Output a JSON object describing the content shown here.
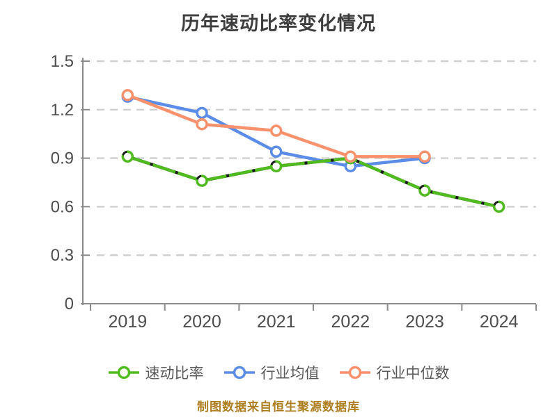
{
  "chart_data": {
    "type": "line",
    "title": "历年速动比率变化情况",
    "categories": [
      "2019",
      "2020",
      "2021",
      "2022",
      "2023",
      "2024"
    ],
    "series": [
      {
        "name": "速动比率",
        "key": "quick-ratio",
        "color": "#4fbb1f",
        "values": [
          0.91,
          0.76,
          0.85,
          0.9,
          0.7,
          0.6
        ]
      },
      {
        "name": "行业均值",
        "key": "industry-mean",
        "color": "#5a8ce8",
        "values": [
          1.28,
          1.18,
          0.94,
          0.85,
          0.9,
          null
        ]
      },
      {
        "name": "行业中位数",
        "key": "industry-median",
        "color": "#f9916c",
        "values": [
          1.29,
          1.11,
          1.07,
          0.91,
          0.91,
          null
        ]
      }
    ],
    "ylim": [
      0,
      1.5
    ],
    "yticks": [
      0,
      0.3,
      0.6,
      0.9,
      1.2,
      1.5
    ],
    "ytick_labels": [
      "0",
      "0.3",
      "0.6",
      "0.9",
      "1.2",
      "1.5"
    ],
    "grid": "horizontal-dashed",
    "legend_position": "bottom",
    "caption": "制图数据来自恒生聚源数据库"
  },
  "colors": {
    "title_text": "#3d3d3d",
    "axis_line": "#8c8c8c",
    "tick_label": "#4d4d4d",
    "gridline": "#cfcfcf",
    "legend_text": "#595959",
    "caption_text": "#ad7d20",
    "marker_fill": "#ffffff",
    "quick_ratio_underlay": "#1a1a1a"
  }
}
